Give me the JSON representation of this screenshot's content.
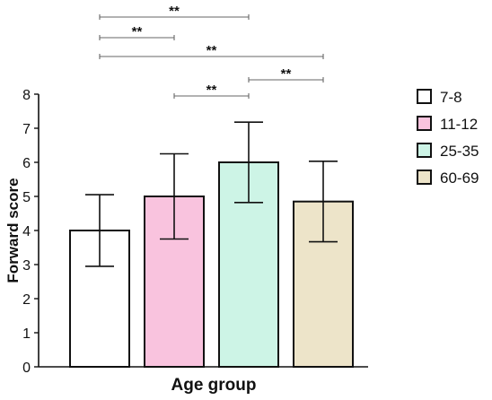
{
  "chart_data": {
    "type": "bar",
    "xlabel": "Age group",
    "ylabel": "Forward score",
    "ylim": [
      0,
      8
    ],
    "yticks": [
      "0",
      "1",
      "2",
      "3",
      "4",
      "5",
      "6",
      "7",
      "8"
    ],
    "categories": [
      "7-8",
      "11-12",
      "25-35",
      "60-69"
    ],
    "values": [
      4.0,
      5.0,
      6.0,
      4.85
    ],
    "error": [
      1.05,
      1.25,
      1.18,
      1.18
    ],
    "colors": [
      "#ffffff",
      "#f9c3de",
      "#cdf4e6",
      "#ede4c9"
    ],
    "legend": {
      "position": "right",
      "entries": [
        "7-8",
        "11-12",
        "25-35",
        "60-69"
      ]
    },
    "significance": [
      {
        "from": 0,
        "to": 2,
        "label": "**"
      },
      {
        "from": 0,
        "to": 1,
        "label": "**"
      },
      {
        "from": 0,
        "to": 3,
        "label": "**"
      },
      {
        "from": 2,
        "to": 3,
        "label": "**"
      },
      {
        "from": 1,
        "to": 2,
        "label": "**"
      }
    ]
  }
}
